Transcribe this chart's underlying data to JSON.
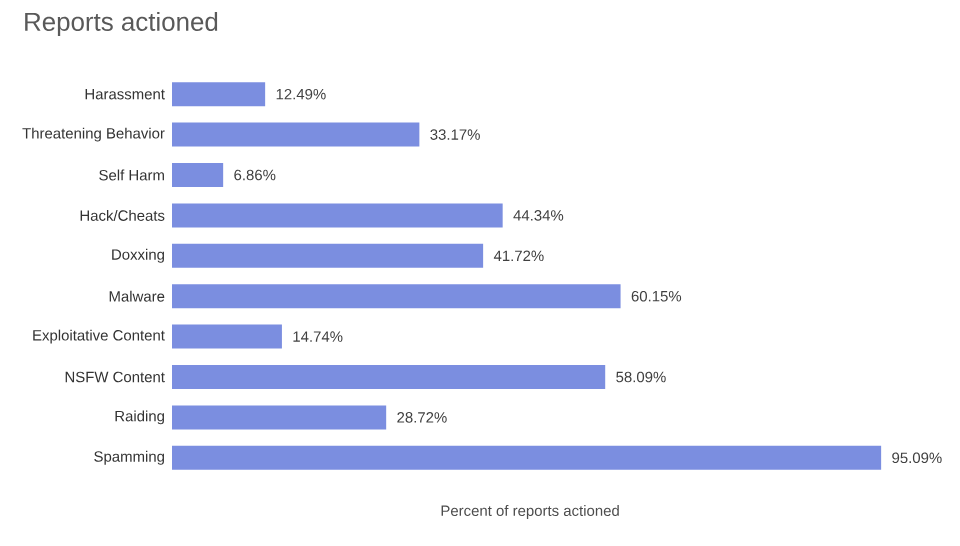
{
  "chart_data": {
    "type": "bar",
    "orientation": "horizontal",
    "title": "Reports actioned",
    "xlabel": "Percent of reports actioned",
    "categories": [
      "Harassment",
      "Threatening Behavior",
      "Self Harm",
      "Hack/Cheats",
      "Doxxing",
      "Malware",
      "Exploitative Content",
      "NSFW Content",
      "Raiding",
      "Spamming"
    ],
    "values": [
      12.49,
      33.17,
      6.86,
      44.34,
      41.72,
      60.15,
      14.74,
      58.09,
      28.72,
      95.09
    ],
    "value_labels": [
      "12.49%",
      "33.17%",
      "6.86%",
      "44.34%",
      "41.72%",
      "60.15%",
      "14.74%",
      "58.09%",
      "28.72%",
      "95.09%"
    ],
    "color": "#7b8ee0"
  }
}
